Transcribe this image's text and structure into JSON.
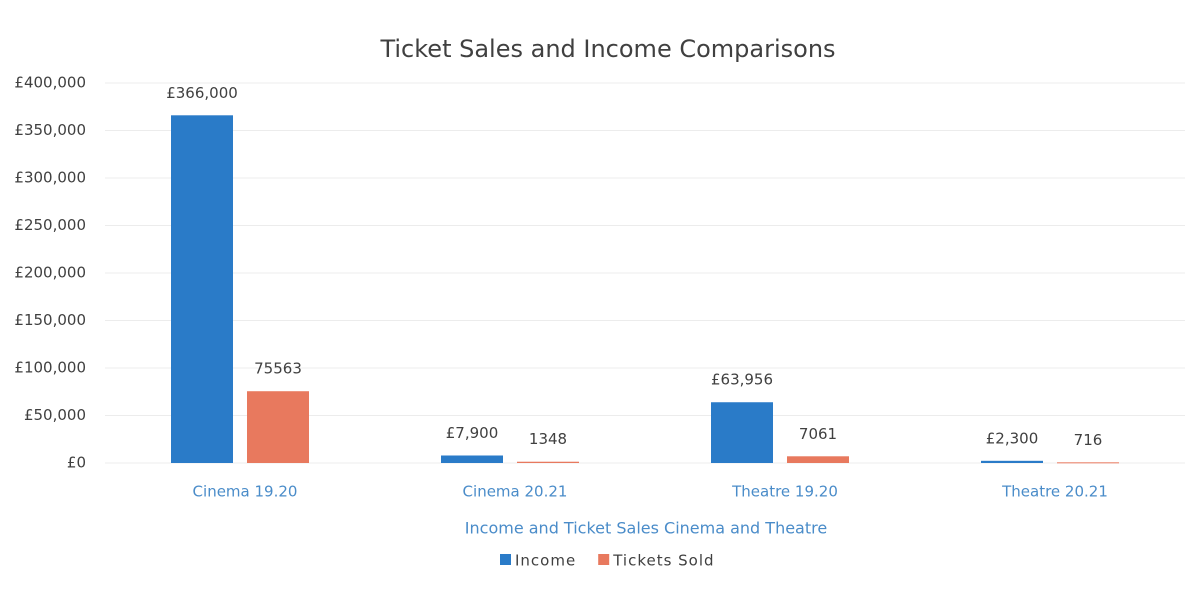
{
  "chart_data": {
    "type": "bar",
    "title": "Ticket Sales and Income Comparisons",
    "x_label": "Income and Ticket Sales Cinema and Theatre",
    "categories": [
      "Cinema 19.20",
      "Cinema 20.21",
      "Theatre 19.20",
      "Theatre 20.21"
    ],
    "series": [
      {
        "name": "Income",
        "color": "#2a7bc8",
        "values": [
          366000,
          7900,
          63956,
          2300
        ],
        "value_labels": [
          "£366,000",
          "£7,900",
          "£63,956",
          "£2,300"
        ]
      },
      {
        "name": "Tickets Sold",
        "color": "#e8795e",
        "values": [
          75563,
          1348,
          7061,
          716
        ]
      }
    ],
    "ylim": [
      0,
      400000
    ],
    "yticks": [
      {
        "value": 0,
        "label": "£0"
      },
      {
        "value": 50000,
        "label": "£50,000"
      },
      {
        "value": 100000,
        "label": "£100,000"
      },
      {
        "value": 150000,
        "label": "£150,000"
      },
      {
        "value": 200000,
        "label": "£200,000"
      },
      {
        "value": 250000,
        "label": "£250,000"
      },
      {
        "value": 300000,
        "label": "£300,000"
      },
      {
        "value": 350000,
        "label": "£350,000"
      },
      {
        "value": 400000,
        "label": "£400,000"
      }
    ],
    "grid": true,
    "legend": "bottom"
  }
}
